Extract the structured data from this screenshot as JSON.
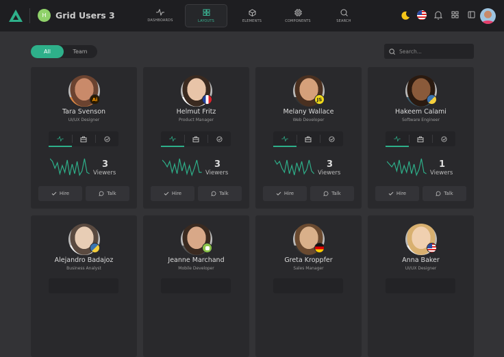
{
  "app": {
    "title": "Grid Users 3",
    "badge_letter": "H"
  },
  "nav": [
    {
      "label": "DASHBOARDS",
      "icon": "activity-icon",
      "active": false
    },
    {
      "label": "LAYOUTS",
      "icon": "grid-icon",
      "active": true
    },
    {
      "label": "ELEMENTS",
      "icon": "cube-icon",
      "active": false
    },
    {
      "label": "COMPONENTS",
      "icon": "cpu-icon",
      "active": false
    },
    {
      "label": "SEARCH",
      "icon": "search-icon",
      "active": false
    }
  ],
  "filter": {
    "options": [
      "All",
      "Team"
    ],
    "selected": "All"
  },
  "search": {
    "placeholder": "Search..."
  },
  "colors": {
    "accent": "#2eb08a",
    "card": "#29292c",
    "header": "#1e1e21"
  },
  "actions": {
    "hire": "Hire",
    "talk": "Talk",
    "viewers": "Viewers"
  },
  "users": [
    {
      "name": "Tara Svenson",
      "role": "UI/UX Designer",
      "viewers": "3",
      "badge": "Ai"
    },
    {
      "name": "Helmut Fritz",
      "role": "Product Manager",
      "viewers": "3",
      "badge": "flag-france"
    },
    {
      "name": "Melany Wallace",
      "role": "Web Developer",
      "viewers": "3",
      "badge": "JS"
    },
    {
      "name": "Hakeem Calami",
      "role": "Software Engineer",
      "viewers": "1",
      "badge": "python"
    },
    {
      "name": "Alejandro Badajoz",
      "role": "Business Analyst",
      "badge": "python"
    },
    {
      "name": "Jeanne Marchand",
      "role": "Mobile Developer",
      "badge": "android"
    },
    {
      "name": "Greta Kroppfer",
      "role": "Sales Manager",
      "badge": "flag-germany"
    },
    {
      "name": "Anna Baker",
      "role": "UI/UX Designer",
      "badge": "flag-usa"
    }
  ]
}
